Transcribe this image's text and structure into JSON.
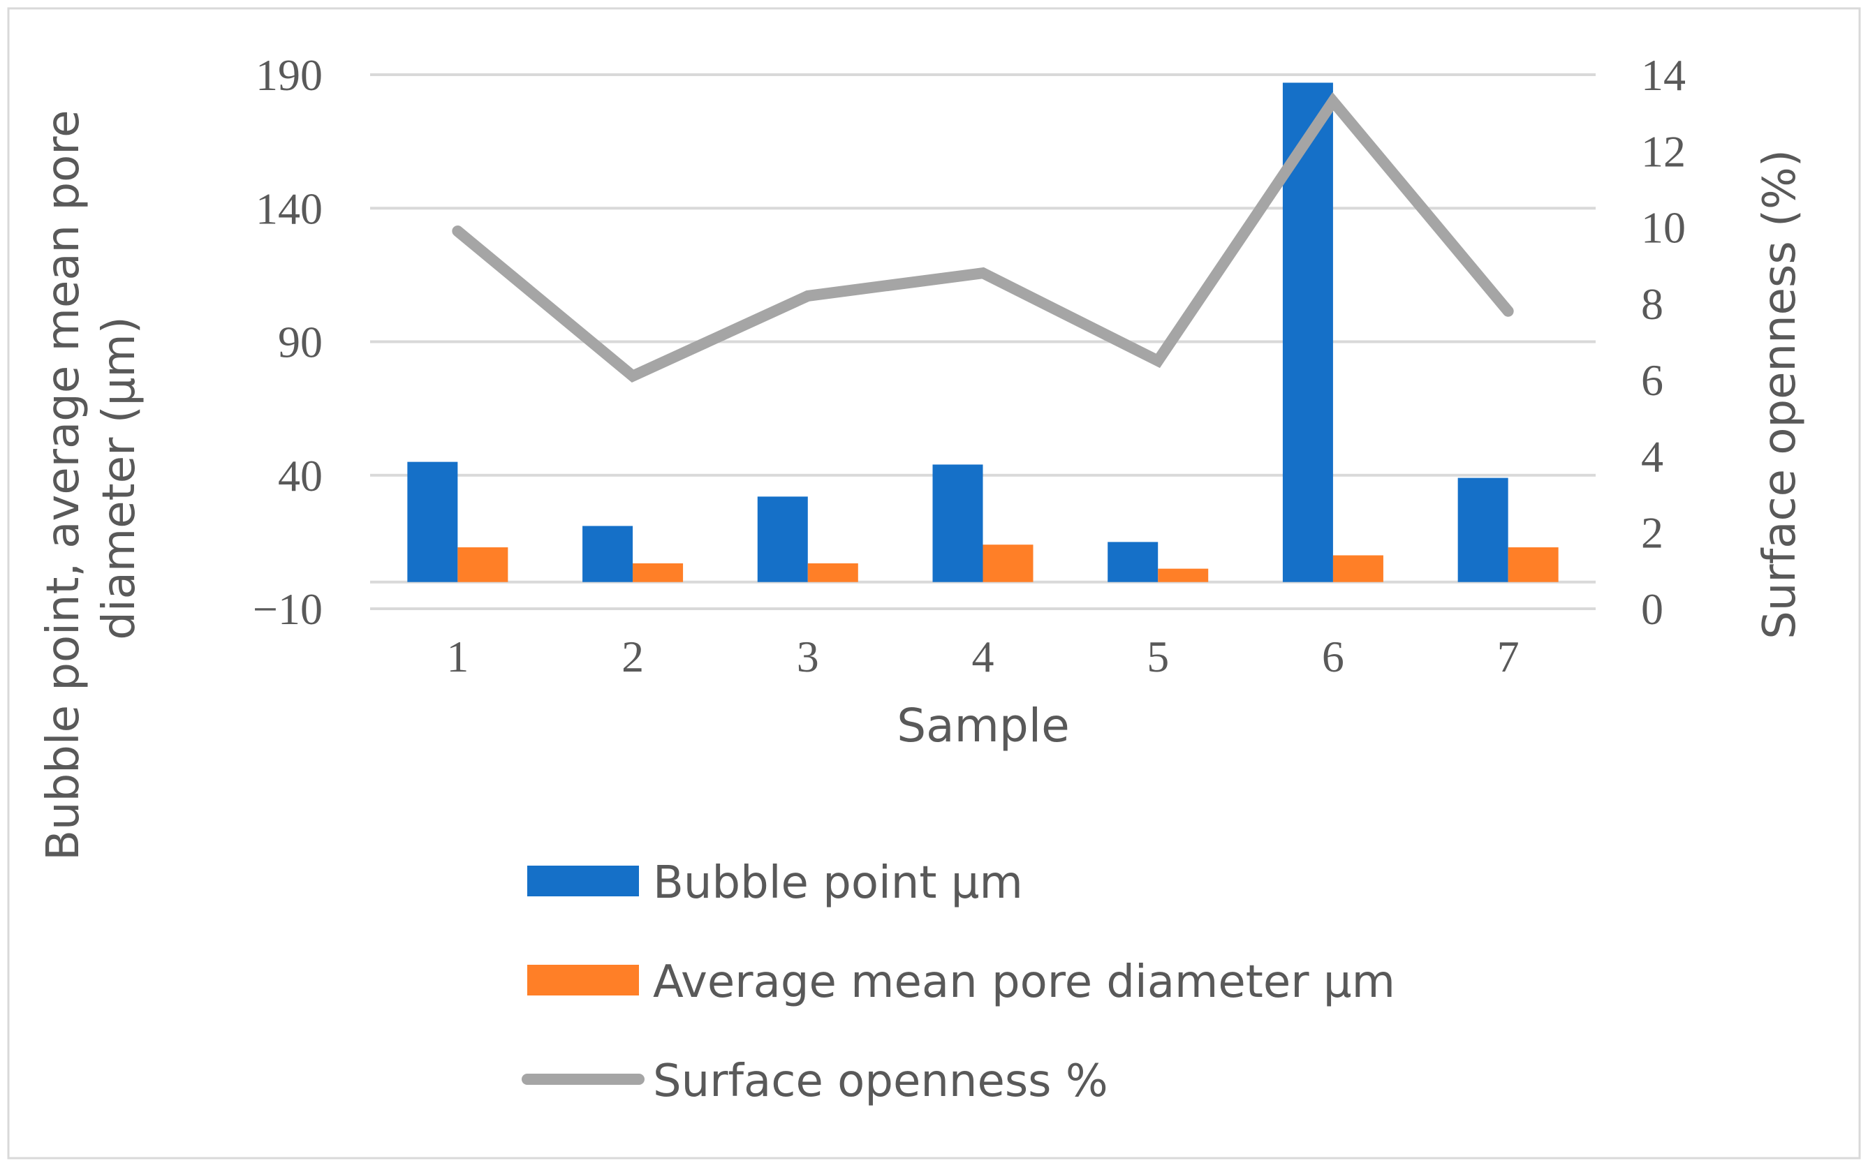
{
  "chart_data": {
    "type": "bar",
    "xlabel": "Sample",
    "ylabel": "Bubble point, average mean pore diameter (µm)",
    "y2label": "Surface openness (%)",
    "categories": [
      "1",
      "2",
      "3",
      "4",
      "5",
      "6",
      "7"
    ],
    "y_ticks": [
      "190",
      "140",
      "90",
      "40",
      "−10"
    ],
    "y2_ticks": [
      "14",
      "12",
      "10",
      "8",
      "6",
      "4",
      "2",
      "0"
    ],
    "ylim": [
      -10,
      190
    ],
    "y2lim": [
      0,
      14
    ],
    "series": [
      {
        "name": "Bubble point µm",
        "type": "bar",
        "axis": "left",
        "color": "#1570C8",
        "values": [
          45,
          21,
          32,
          44,
          15,
          187,
          39
        ]
      },
      {
        "name": "Average mean pore diameter µm",
        "type": "bar",
        "axis": "left",
        "color": "#FF7F27",
        "values": [
          13,
          7,
          7,
          14,
          5,
          10,
          13
        ]
      },
      {
        "name": "Surface openness  %",
        "type": "line",
        "axis": "right",
        "color": "#A5A5A5",
        "values": [
          9.9,
          6.1,
          8.2,
          8.8,
          6.5,
          13.3,
          7.8
        ]
      }
    ],
    "legend": "bottom",
    "grid": true
  }
}
